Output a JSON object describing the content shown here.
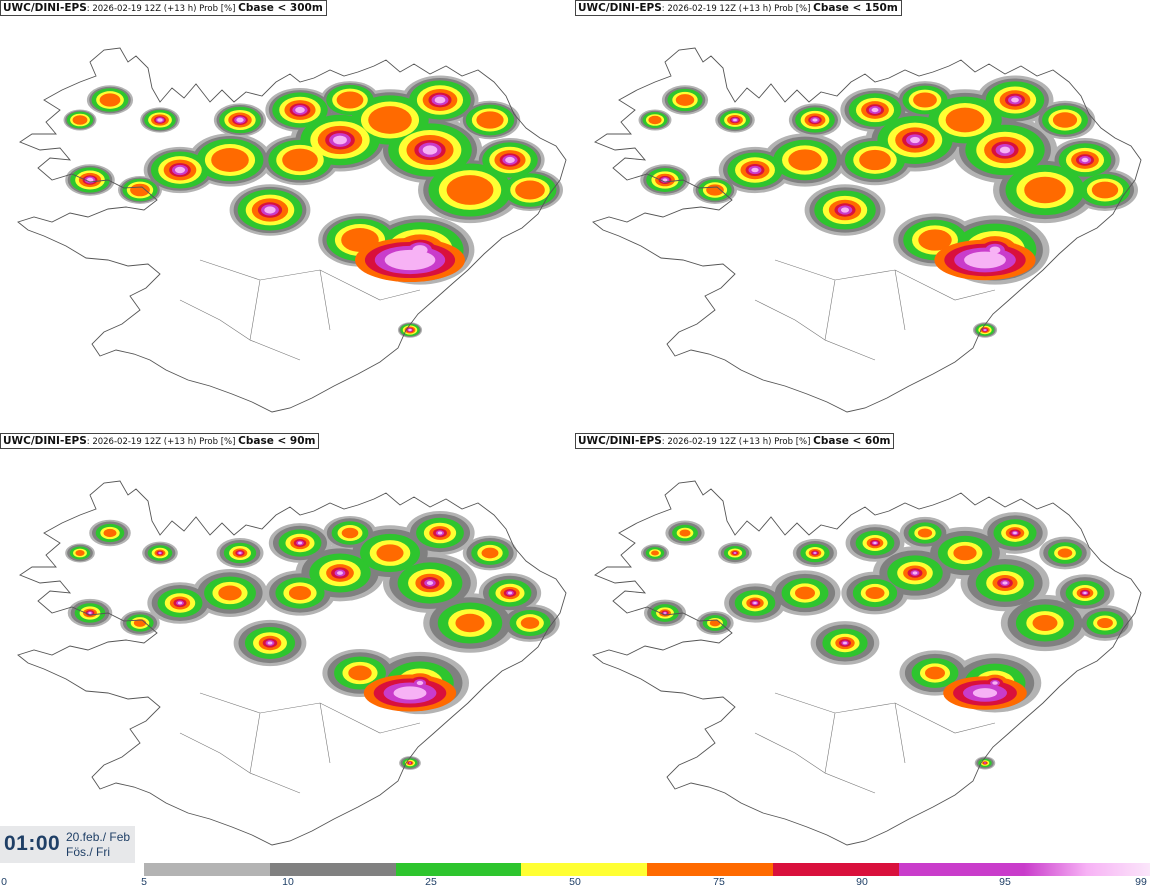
{
  "panels": [
    {
      "model": "UWC/DINI-EPS",
      "meta": ": 2026-02-19 12Z (+13 h) Prob [%] ",
      "threshold": "Cbase < 300m"
    },
    {
      "model": "UWC/DINI-EPS",
      "meta": ": 2026-02-19 12Z (+13 h) Prob [%] ",
      "threshold": "Cbase < 150m"
    },
    {
      "model": "UWC/DINI-EPS",
      "meta": ": 2026-02-19 12Z (+13 h) Prob [%] ",
      "threshold": "Cbase < 90m"
    },
    {
      "model": "UWC/DINI-EPS",
      "meta": ": 2026-02-19 12Z (+13 h) Prob [%] ",
      "threshold": "Cbase < 60m"
    }
  ],
  "time": {
    "clock": "01:00",
    "date_line1": "20.feb./ Feb",
    "date_line2": "Fös./ Fri"
  },
  "legend": {
    "labels": [
      "0",
      "5",
      "10",
      "25",
      "50",
      "75",
      "90",
      "95",
      "99"
    ],
    "colors": [
      "#b3b3b3",
      "#808080",
      "#2ec52e",
      "#ffff33",
      "#ff6a00",
      "#d9103c",
      "#c93ccb",
      "#f7b2f5"
    ]
  },
  "map_colors": {
    "outline": "#555555",
    "p5": "#b3b3b3",
    "p10": "#808080",
    "p25": "#2ec52e",
    "p50": "#ffff33",
    "p75": "#ff6a00",
    "p90": "#d9103c",
    "p95": "#c93ccb",
    "p99": "#f7b2f5"
  }
}
